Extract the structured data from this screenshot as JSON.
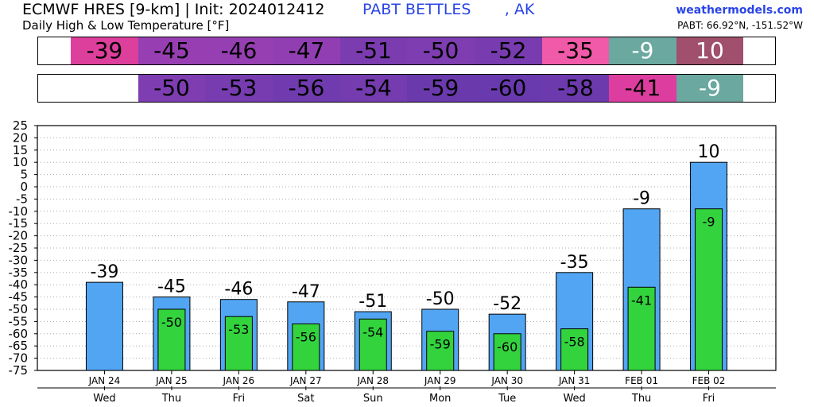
{
  "header": {
    "title": "ECMWF HRES [9-km] | Init: 2024012412",
    "station": "PABT BETTLES       , AK",
    "subtitle": "Daily High & Low Temperature [°F]",
    "site": "weathermodels.com",
    "coords": "PABT: 66.92°N, -151.52°W"
  },
  "strips": {
    "high": [
      {
        "label": "",
        "color": "#ffffff",
        "light": false
      },
      {
        "label": "-39",
        "color": "#dd3f9c",
        "light": false
      },
      {
        "label": "-45",
        "color": "#973fb2",
        "light": false
      },
      {
        "label": "-46",
        "color": "#963fb2",
        "light": false
      },
      {
        "label": "-47",
        "color": "#923eb3",
        "light": false
      },
      {
        "label": "-51",
        "color": "#7b3cb0",
        "light": false
      },
      {
        "label": "-50",
        "color": "#7e3db1",
        "light": false
      },
      {
        "label": "-52",
        "color": "#783cb0",
        "light": false
      },
      {
        "label": "-35",
        "color": "#f15aa8",
        "light": false
      },
      {
        "label": "-9",
        "color": "#6aa8a0",
        "light": true
      },
      {
        "label": "10",
        "color": "#a0506d",
        "light": true
      },
      {
        "label": "",
        "color": "#ffffff",
        "light": false
      }
    ],
    "low": [
      {
        "label": "",
        "color": "#ffffff",
        "light": false
      },
      {
        "label": "",
        "color": "#ffffff",
        "light": false
      },
      {
        "label": "-50",
        "color": "#7e3db1",
        "light": false
      },
      {
        "label": "-53",
        "color": "#763cb0",
        "light": false
      },
      {
        "label": "-56",
        "color": "#703bae",
        "light": false
      },
      {
        "label": "-54",
        "color": "#743caf",
        "light": false
      },
      {
        "label": "-59",
        "color": "#6a3aad",
        "light": false
      },
      {
        "label": "-60",
        "color": "#683aad",
        "light": false
      },
      {
        "label": "-58",
        "color": "#6c3aad",
        "light": false
      },
      {
        "label": "-41",
        "color": "#dc3d9f",
        "light": false
      },
      {
        "label": "-9",
        "color": "#6aa8a0",
        "light": true
      },
      {
        "label": "",
        "color": "#ffffff",
        "light": false
      }
    ]
  },
  "colors": {
    "high_bar": "#52a5f3",
    "low_bar": "#33d33d",
    "bar_edge": "#000000",
    "grid": "#aaaaaa"
  },
  "chart_data": {
    "type": "bar",
    "title": "Daily High & Low Temperature [°F]",
    "xlabel": "",
    "ylabel": "",
    "ylim": [
      -75,
      25
    ],
    "yticks": [
      25,
      20,
      15,
      10,
      5,
      0,
      -5,
      -10,
      -15,
      -20,
      -25,
      -30,
      -35,
      -40,
      -45,
      -50,
      -55,
      -60,
      -65,
      -70,
      -75
    ],
    "grid": true,
    "categories": [
      "JAN 24",
      "JAN 25",
      "JAN 26",
      "JAN 27",
      "JAN 28",
      "JAN 29",
      "JAN 30",
      "JAN 31",
      "FEB 01",
      "FEB 02"
    ],
    "weekdays": [
      "Wed",
      "Thu",
      "Fri",
      "Sat",
      "Sun",
      "Mon",
      "Tue",
      "Wed",
      "Thu",
      "Fri"
    ],
    "series": [
      {
        "values": [
          -39,
          -45,
          -46,
          -47,
          -51,
          -50,
          -52,
          -35,
          -9,
          10
        ]
      },
      {
        "values": [
          null,
          -50,
          -53,
          -56,
          -54,
          -59,
          -60,
          -58,
          -41,
          -9
        ]
      }
    ]
  }
}
